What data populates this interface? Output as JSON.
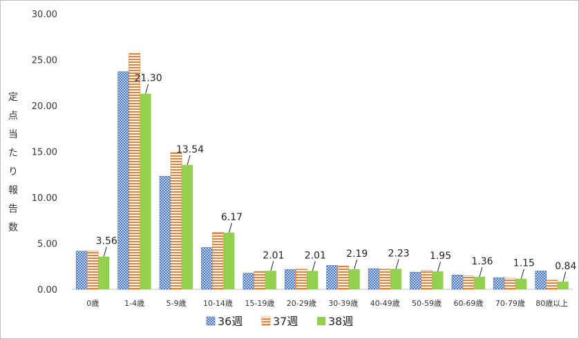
{
  "chart_data": {
    "type": "bar",
    "ylabel": "定点当たり報告数",
    "ylim": [
      0,
      30
    ],
    "yticks": [
      "0.00",
      "5.00",
      "10.00",
      "15.00",
      "20.00",
      "25.00",
      "30.00"
    ],
    "categories": [
      "0歳",
      "1-4歳",
      "5-9歳",
      "10-14歳",
      "15-19歳",
      "20-29歳",
      "30-39歳",
      "40-49歳",
      "50-59歳",
      "60-69歳",
      "70-79歳",
      "80歳以上"
    ],
    "series": [
      {
        "name": "36週",
        "values": [
          4.15,
          23.7,
          12.3,
          4.55,
          1.75,
          2.15,
          2.6,
          2.25,
          1.85,
          1.55,
          1.25,
          2.0
        ],
        "color": "#4472c4",
        "pattern": "dots"
      },
      {
        "name": "37週",
        "values": [
          4.15,
          25.7,
          14.9,
          6.2,
          1.95,
          2.2,
          2.55,
          2.2,
          2.05,
          1.45,
          1.2,
          1.0
        ],
        "color": "#ed7d31",
        "pattern": "hstripes"
      },
      {
        "name": "38週",
        "values": [
          3.56,
          21.3,
          13.54,
          6.17,
          2.01,
          2.01,
          2.19,
          2.23,
          1.95,
          1.36,
          1.15,
          0.84
        ],
        "color": "#92d050",
        "pattern": "solid",
        "labels": [
          "3.56",
          "21.30",
          "13.54",
          "6.17",
          "2.01",
          "2.01",
          "2.19",
          "2.23",
          "1.95",
          "1.36",
          "1.15",
          "0.84"
        ]
      }
    ],
    "legend": "bottom",
    "grid": false
  }
}
